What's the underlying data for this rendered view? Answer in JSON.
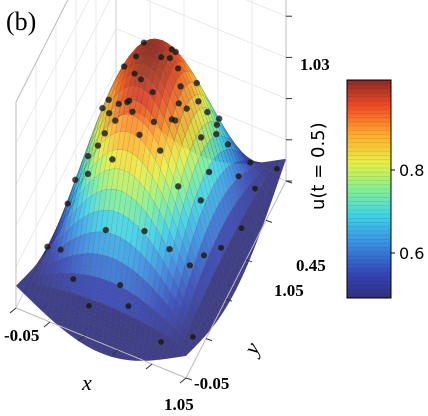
{
  "panel_label": "(b)",
  "chart_data": {
    "type": "surface3d",
    "title": "",
    "xlabel": "x",
    "ylabel": "y",
    "zlabel": "u(t = 0.5)",
    "x_ticks": [
      "-0.05",
      "1.05"
    ],
    "y_ticks": [
      "-0.05",
      "1.05"
    ],
    "z_ticks": [
      "0.45",
      "1.03"
    ],
    "xlim": [
      -0.05,
      1.05
    ],
    "ylim": [
      -0.05,
      1.05
    ],
    "zlim": [
      0.45,
      1.03
    ],
    "colorbar": {
      "range": [
        0.5,
        1.0
      ],
      "ticks": [
        "0.6",
        "0.8"
      ],
      "colormap": "jet"
    },
    "surface": "u(x, y) at t = 0.5, maximum ≈ 1.0 near (0.5, 0.5), minimum ≈ 0.5 at the domain corners",
    "sample_points": [
      [
        0.62,
        0.07
      ],
      [
        0.44,
        0.15
      ],
      [
        0.78,
        0.21
      ],
      [
        0.27,
        0.26
      ],
      [
        0.55,
        0.3
      ],
      [
        0.9,
        0.35
      ],
      [
        0.12,
        0.39
      ],
      [
        0.69,
        0.42
      ],
      [
        0.36,
        0.47
      ],
      [
        0.83,
        0.52
      ],
      [
        0.21,
        0.57
      ],
      [
        0.58,
        0.61
      ],
      [
        0.95,
        0.64
      ],
      [
        0.07,
        0.7
      ],
      [
        0.47,
        0.74
      ],
      [
        0.73,
        0.79
      ],
      [
        0.31,
        0.84
      ],
      [
        0.86,
        0.88
      ],
      [
        0.15,
        0.91
      ],
      [
        0.53,
        0.95
      ],
      [
        0.4,
        0.05
      ],
      [
        0.97,
        0.12
      ],
      [
        0.18,
        0.14
      ],
      [
        0.65,
        0.18
      ],
      [
        0.05,
        0.23
      ],
      [
        0.34,
        0.31
      ],
      [
        0.76,
        0.33
      ],
      [
        0.5,
        0.4
      ],
      [
        0.25,
        0.44
      ],
      [
        0.93,
        0.47
      ],
      [
        0.63,
        0.55
      ],
      [
        0.1,
        0.55
      ],
      [
        0.4,
        0.6
      ],
      [
        0.79,
        0.66
      ],
      [
        0.28,
        0.71
      ],
      [
        0.61,
        0.77
      ],
      [
        0.93,
        0.81
      ],
      [
        0.09,
        0.84
      ],
      [
        0.44,
        0.88
      ],
      [
        0.7,
        0.93
      ],
      [
        0.24,
        0.97
      ],
      [
        0.83,
        0.04
      ],
      [
        0.56,
        0.09
      ],
      [
        0.14,
        0.28
      ],
      [
        0.87,
        0.26
      ],
      [
        0.46,
        0.35
      ],
      [
        0.71,
        0.5
      ],
      [
        0.33,
        0.64
      ],
      [
        0.51,
        0.69
      ],
      [
        0.19,
        0.79
      ],
      [
        0.88,
        0.73
      ],
      [
        0.62,
        0.86
      ],
      [
        0.37,
        0.93
      ],
      [
        0.04,
        0.96
      ],
      [
        0.97,
        0.96
      ],
      [
        0.29,
        0.08
      ],
      [
        0.72,
        0.6
      ],
      [
        0.56,
        0.5
      ],
      [
        0.42,
        0.25
      ],
      [
        0.84,
        0.42
      ],
      [
        0.16,
        0.66
      ],
      [
        0.66,
        0.32
      ],
      [
        0.48,
        0.83
      ],
      [
        0.77,
        0.7
      ]
    ]
  }
}
